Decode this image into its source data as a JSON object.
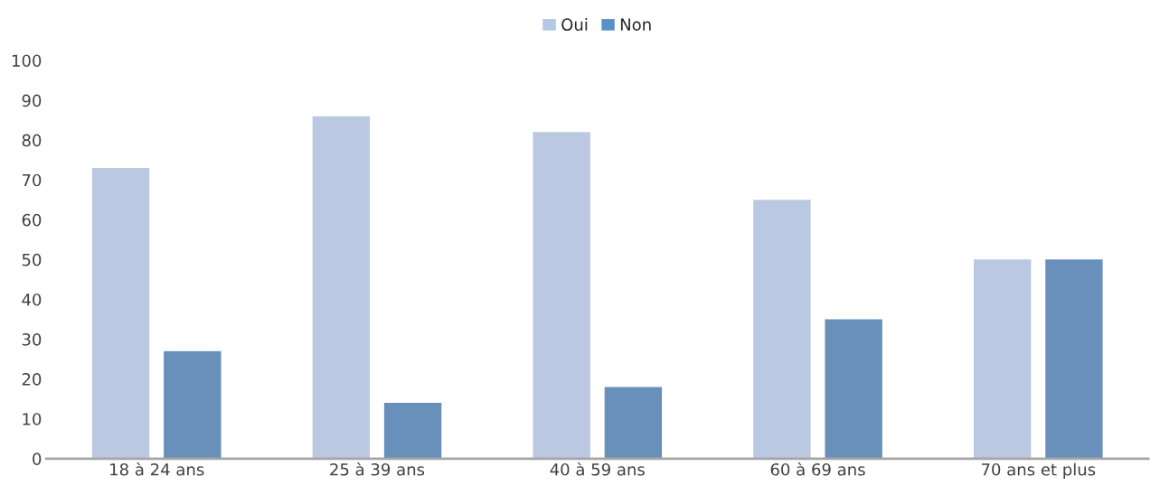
{
  "chart_data": {
    "type": "bar",
    "categories": [
      "18 à 24 ans",
      "25 à 39 ans",
      "40 à 59 ans",
      "60 à 69 ans",
      "70 ans et plus"
    ],
    "series": [
      {
        "name": "Oui",
        "color": "#b4c7e7",
        "values": [
          73,
          86,
          82,
          65,
          50
        ]
      },
      {
        "name": "Non",
        "color": "#5b8fc7",
        "values": [
          27,
          14,
          18,
          35,
          50
        ]
      }
    ],
    "ylim": [
      0,
      100
    ],
    "yticks": [
      0,
      10,
      20,
      30,
      40,
      50,
      60,
      70,
      80,
      90,
      100
    ],
    "grid": false,
    "legend": "top"
  }
}
